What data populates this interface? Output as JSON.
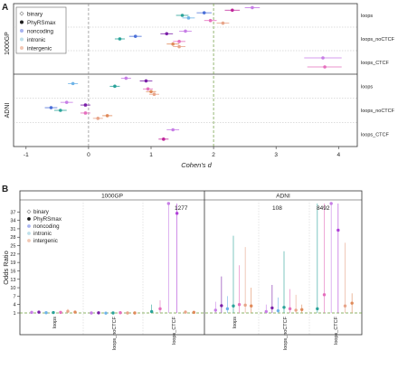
{
  "figure": {
    "panel_a_label": "A",
    "panel_b_label": "B"
  },
  "legend_items": [
    {
      "label": "binary",
      "symbol": "binary-icon",
      "color": "#9a9a9a"
    },
    {
      "label": "PhyRSmax",
      "symbol": "phyrsmax-icon",
      "color": "#1e1e1e"
    },
    {
      "label": "noncoding",
      "symbol": "noncoding-icon",
      "color": "#a8b4f0"
    },
    {
      "label": "intronic",
      "symbol": "intronic-icon",
      "color": "#bfe0ea"
    },
    {
      "label": "intergenic",
      "symbol": "intergenic-icon",
      "color": "#f2c7b4"
    }
  ],
  "colors": {
    "purple_dark": "#7a1fa8",
    "purple_mid": "#b040d8",
    "purple_light": "#c77ee6",
    "magenta": "#c0249a",
    "pink": "#e56fbd",
    "teal": "#2aa39a",
    "blue": "#4a6fd8",
    "skyblue": "#6fb4e8",
    "orange": "#e08a5a",
    "salmon": "#e8a58a",
    "ref_line": "#6a9a3a"
  },
  "chart_data": [
    {
      "type": "scatter",
      "title": "",
      "xlabel": "Cohen's d",
      "ylabel": "",
      "xlim": [
        -1.2,
        4.3
      ],
      "xticks": [
        -1,
        0,
        1,
        2,
        3,
        4
      ],
      "ref_lines": [
        0,
        2
      ],
      "groups": [
        {
          "name": "1000GP",
          "rows": [
            {
              "label": "loops",
              "points": [
                {
                  "d": 2.62,
                  "lo": 2.5,
                  "hi": 2.74,
                  "color": "purple_light"
                },
                {
                  "d": 2.3,
                  "lo": 2.18,
                  "hi": 2.42,
                  "color": "magenta"
                },
                {
                  "d": 1.85,
                  "lo": 1.73,
                  "hi": 1.97,
                  "color": "blue"
                },
                {
                  "d": 1.5,
                  "lo": 1.4,
                  "hi": 1.6,
                  "color": "teal"
                },
                {
                  "d": 1.6,
                  "lo": 1.5,
                  "hi": 1.7,
                  "color": "skyblue"
                },
                {
                  "d": 1.95,
                  "lo": 1.85,
                  "hi": 2.05,
                  "color": "pink"
                },
                {
                  "d": 2.15,
                  "lo": 2.05,
                  "hi": 2.25,
                  "color": "salmon"
                }
              ]
            },
            {
              "label": "loops_noCTCF",
              "points": [
                {
                  "d": 1.55,
                  "lo": 1.45,
                  "hi": 1.65,
                  "color": "purple_light"
                },
                {
                  "d": 1.25,
                  "lo": 1.15,
                  "hi": 1.35,
                  "color": "purple_dark"
                },
                {
                  "d": 0.75,
                  "lo": 0.65,
                  "hi": 0.85,
                  "color": "blue"
                },
                {
                  "d": 0.5,
                  "lo": 0.42,
                  "hi": 0.58,
                  "color": "teal"
                },
                {
                  "d": 1.45,
                  "lo": 1.35,
                  "hi": 1.55,
                  "color": "pink"
                },
                {
                  "d": 1.35,
                  "lo": 1.25,
                  "hi": 1.45,
                  "color": "orange"
                },
                {
                  "d": 1.45,
                  "lo": 1.35,
                  "hi": 1.55,
                  "color": "salmon"
                }
              ]
            },
            {
              "label": "loops_CTCF",
              "points": [
                {
                  "d": 3.75,
                  "lo": 3.45,
                  "hi": 4.05,
                  "color": "purple_light"
                },
                {
                  "d": 3.78,
                  "lo": 3.5,
                  "hi": 4.05,
                  "color": "pink"
                }
              ]
            }
          ]
        },
        {
          "name": "ADNI",
          "rows": [
            {
              "label": "loops",
              "points": [
                {
                  "d": 0.6,
                  "lo": 0.52,
                  "hi": 0.68,
                  "color": "purple_light"
                },
                {
                  "d": 0.92,
                  "lo": 0.82,
                  "hi": 1.02,
                  "color": "purple_dark"
                },
                {
                  "d": -0.25,
                  "lo": -0.33,
                  "hi": -0.17,
                  "color": "skyblue"
                },
                {
                  "d": 0.42,
                  "lo": 0.34,
                  "hi": 0.5,
                  "color": "teal"
                },
                {
                  "d": 0.95,
                  "lo": 0.87,
                  "hi": 1.03,
                  "color": "pink"
                },
                {
                  "d": 1.0,
                  "lo": 0.92,
                  "hi": 1.08,
                  "color": "orange"
                },
                {
                  "d": 1.05,
                  "lo": 0.97,
                  "hi": 1.13,
                  "color": "salmon"
                }
              ]
            },
            {
              "label": "loops_noCTCF",
              "points": [
                {
                  "d": -0.35,
                  "lo": -0.45,
                  "hi": -0.25,
                  "color": "purple_light"
                },
                {
                  "d": -0.05,
                  "lo": -0.13,
                  "hi": 0.03,
                  "color": "purple_dark"
                },
                {
                  "d": -0.6,
                  "lo": -0.7,
                  "hi": -0.5,
                  "color": "blue"
                },
                {
                  "d": -0.45,
                  "lo": -0.55,
                  "hi": -0.35,
                  "color": "teal"
                },
                {
                  "d": -0.05,
                  "lo": -0.13,
                  "hi": 0.03,
                  "color": "pink"
                },
                {
                  "d": 0.3,
                  "lo": 0.22,
                  "hi": 0.38,
                  "color": "orange"
                },
                {
                  "d": 0.15,
                  "lo": 0.07,
                  "hi": 0.23,
                  "color": "salmon"
                }
              ]
            },
            {
              "label": "loops_CTCF",
              "points": [
                {
                  "d": 1.35,
                  "lo": 1.25,
                  "hi": 1.45,
                  "color": "purple_light"
                },
                {
                  "d": 1.2,
                  "lo": 1.12,
                  "hi": 1.28,
                  "color": "magenta"
                }
              ]
            }
          ]
        }
      ]
    },
    {
      "type": "scatter",
      "title": "",
      "xlabel": "",
      "ylabel": "Odds Ratio",
      "ylim": [
        1,
        40
      ],
      "yticks": [
        1,
        4,
        7,
        10,
        13,
        16,
        19,
        22,
        25,
        28,
        31,
        34,
        37
      ],
      "ref_line": 1,
      "top_value_labels": [
        {
          "panel": "1000GP",
          "text": "1277"
        },
        {
          "panel": "ADNI",
          "text": "108"
        },
        {
          "panel": "ADNI",
          "text": "8492"
        }
      ],
      "panels": [
        {
          "name": "1000GP",
          "categories": [
            "loops",
            "loops_noCTCF",
            "loops_CTCF"
          ],
          "groups": [
            {
              "category": "loops",
              "points": [
                {
                  "or": 1.2,
                  "lo": 1.0,
                  "hi": 1.6,
                  "color": "purple_light"
                },
                {
                  "or": 1.3,
                  "lo": 1.0,
                  "hi": 1.7,
                  "color": "purple_dark"
                },
                {
                  "or": 1.1,
                  "lo": 1.0,
                  "hi": 1.4,
                  "color": "skyblue"
                },
                {
                  "or": 1.15,
                  "lo": 1.0,
                  "hi": 1.5,
                  "color": "teal"
                },
                {
                  "or": 1.2,
                  "lo": 1.0,
                  "hi": 1.6,
                  "color": "pink"
                },
                {
                  "or": 1.6,
                  "lo": 1.0,
                  "hi": 2.4,
                  "color": "salmon"
                },
                {
                  "or": 1.3,
                  "lo": 1.0,
                  "hi": 1.8,
                  "color": "orange"
                }
              ]
            },
            {
              "category": "loops_noCTCF",
              "points": [
                {
                  "or": 1.0,
                  "lo": 0.9,
                  "hi": 1.2,
                  "color": "purple_light"
                },
                {
                  "or": 1.05,
                  "lo": 0.9,
                  "hi": 1.3,
                  "color": "purple_dark"
                },
                {
                  "or": 0.95,
                  "lo": 0.9,
                  "hi": 1.1,
                  "color": "skyblue"
                },
                {
                  "or": 1.0,
                  "lo": 0.9,
                  "hi": 1.2,
                  "color": "teal"
                },
                {
                  "or": 1.1,
                  "lo": 0.9,
                  "hi": 1.3,
                  "color": "pink"
                },
                {
                  "or": 1.0,
                  "lo": 0.9,
                  "hi": 1.3,
                  "color": "salmon"
                },
                {
                  "or": 1.0,
                  "lo": 0.9,
                  "hi": 1.2,
                  "color": "orange"
                }
              ]
            },
            {
              "category": "loops_CTCF",
              "points": [
                {
                  "or": 1.5,
                  "lo": 1.0,
                  "hi": 4.0,
                  "color": "teal"
                },
                {
                  "or": 2.5,
                  "lo": 1.0,
                  "hi": 5.5,
                  "color": "pink"
                },
                {
                  "or": 40.0,
                  "lo": 1.0,
                  "hi": 40.0,
                  "color": "purple_light"
                },
                {
                  "or": 36.5,
                  "lo": 1.0,
                  "hi": 40.0,
                  "color": "purple_mid"
                },
                {
                  "or": 1.3,
                  "lo": 1.0,
                  "hi": 2.0,
                  "color": "salmon"
                },
                {
                  "or": 1.2,
                  "lo": 1.0,
                  "hi": 1.8,
                  "color": "orange"
                }
              ]
            }
          ]
        },
        {
          "name": "ADNI",
          "categories": [
            "loops",
            "loops_noCTCF",
            "loops_CTCF"
          ],
          "groups": [
            {
              "category": "loops",
              "points": [
                {
                  "or": 2.0,
                  "lo": 1.0,
                  "hi": 5.0,
                  "color": "purple_light"
                },
                {
                  "or": 3.6,
                  "lo": 1.0,
                  "hi": 14.0,
                  "color": "purple_dark"
                },
                {
                  "or": 2.5,
                  "lo": 1.0,
                  "hi": 7.0,
                  "color": "skyblue"
                },
                {
                  "or": 3.5,
                  "lo": 1.0,
                  "hi": 28.5,
                  "color": "teal"
                },
                {
                  "or": 4.0,
                  "lo": 1.0,
                  "hi": 18.0,
                  "color": "pink"
                },
                {
                  "or": 3.8,
                  "lo": 1.0,
                  "hi": 24.5,
                  "color": "salmon"
                },
                {
                  "or": 3.5,
                  "lo": 1.0,
                  "hi": 10.0,
                  "color": "orange"
                }
              ]
            },
            {
              "category": "loops_noCTCF",
              "points": [
                {
                  "or": 1.5,
                  "lo": 1.0,
                  "hi": 4.0,
                  "color": "purple_light"
                },
                {
                  "or": 2.8,
                  "lo": 1.0,
                  "hi": 11.0,
                  "color": "purple_dark"
                },
                {
                  "or": 1.8,
                  "lo": 1.0,
                  "hi": 6.5,
                  "color": "skyblue"
                },
                {
                  "or": 3.0,
                  "lo": 1.0,
                  "hi": 23.0,
                  "color": "teal"
                },
                {
                  "or": 2.5,
                  "lo": 1.0,
                  "hi": 9.5,
                  "color": "pink"
                },
                {
                  "or": 2.0,
                  "lo": 1.0,
                  "hi": 7.5,
                  "color": "salmon"
                },
                {
                  "or": 2.2,
                  "lo": 1.0,
                  "hi": 4.0,
                  "color": "orange"
                }
              ]
            },
            {
              "category": "loops_CTCF",
              "points": [
                {
                  "or": 2.5,
                  "lo": 1.0,
                  "hi": 40.0,
                  "color": "teal"
                },
                {
                  "or": 7.5,
                  "lo": 1.0,
                  "hi": 40.0,
                  "color": "pink"
                },
                {
                  "or": 40.0,
                  "lo": 1.0,
                  "hi": 40.0,
                  "color": "purple_light"
                },
                {
                  "or": 30.5,
                  "lo": 1.0,
                  "hi": 40.0,
                  "color": "purple_mid"
                },
                {
                  "or": 3.5,
                  "lo": 1.0,
                  "hi": 26.0,
                  "color": "salmon"
                },
                {
                  "or": 4.5,
                  "lo": 1.0,
                  "hi": 8.0,
                  "color": "orange"
                }
              ]
            }
          ]
        }
      ]
    }
  ]
}
